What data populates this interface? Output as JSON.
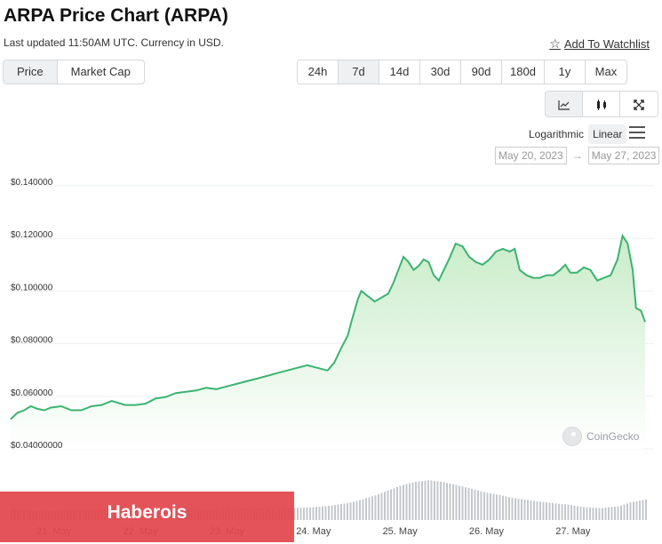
{
  "header": {
    "title": "ARPA Price Chart (ARPA)",
    "subtitle": "Last updated 11:50AM UTC. Currency in USD.",
    "watchlist_label": "Add To Watchlist"
  },
  "metric_tabs": [
    {
      "label": "Price",
      "active": true
    },
    {
      "label": "Market Cap",
      "active": false
    }
  ],
  "range_tabs": [
    {
      "label": "24h",
      "active": false
    },
    {
      "label": "7d",
      "active": true
    },
    {
      "label": "14d",
      "active": false
    },
    {
      "label": "30d",
      "active": false
    },
    {
      "label": "90d",
      "active": false
    },
    {
      "label": "180d",
      "active": false
    },
    {
      "label": "1y",
      "active": false
    },
    {
      "label": "Max",
      "active": false
    }
  ],
  "chart_types": [
    {
      "icon": "line-chart-icon",
      "active": true
    },
    {
      "icon": "candlestick-icon",
      "active": false
    },
    {
      "icon": "fullscreen-icon",
      "active": false
    }
  ],
  "scale": {
    "options": [
      "Logarithmic",
      "Linear"
    ],
    "active": "Linear"
  },
  "date_range": {
    "from": "May 20, 2023",
    "arrow": "→",
    "to": "May 27, 2023"
  },
  "credit": "CoinGecko",
  "banner": {
    "text": "Haberois",
    "color": "#e2464c"
  },
  "colors": {
    "line": "#3cb371",
    "fill_top": "#c9ecc9",
    "fill_bottom": "#ffffff",
    "volume": "#c4c8cc",
    "grid": "#eef0f2"
  },
  "chart_data": {
    "type": "area",
    "x_start": "2023-05-20 12:00",
    "x_end": "2023-05-27 20:00",
    "x_tick_labels": [
      "21. May",
      "22. May",
      "23. May",
      "24. May",
      "25. May",
      "26. May",
      "27. May"
    ],
    "x_tick_dates": [
      "2023-05-21",
      "2023-05-22",
      "2023-05-23",
      "2023-05-24",
      "2023-05-25",
      "2023-05-26",
      "2023-05-27"
    ],
    "y_tick_labels": [
      "$0.140000",
      "$0.120000",
      "$0.100000",
      "$0.080000",
      "$0.060000",
      "$0.04000000"
    ],
    "y_tick_values": [
      0.14,
      0.12,
      0.1,
      0.08,
      0.06,
      0.04
    ],
    "ylim": [
      0.04,
      0.14
    ],
    "grid": true,
    "series": [
      {
        "values": [
          [
            0.0,
            0.0513
          ],
          [
            0.2,
            0.0537
          ],
          [
            0.4,
            0.0547
          ],
          [
            0.6,
            0.0562
          ],
          [
            0.8,
            0.0552
          ],
          [
            1.0,
            0.0547
          ],
          [
            1.2,
            0.0557
          ],
          [
            1.5,
            0.0562
          ],
          [
            1.8,
            0.0547
          ],
          [
            2.1,
            0.0547
          ],
          [
            2.4,
            0.0562
          ],
          [
            2.7,
            0.0567
          ],
          [
            3.0,
            0.0582
          ],
          [
            3.4,
            0.0567
          ],
          [
            3.7,
            0.0567
          ],
          [
            4.0,
            0.0572
          ],
          [
            4.3,
            0.0592
          ],
          [
            4.6,
            0.0597
          ],
          [
            4.9,
            0.0612
          ],
          [
            5.2,
            0.0617
          ],
          [
            5.5,
            0.0622
          ],
          [
            5.8,
            0.0632
          ],
          [
            6.1,
            0.0627
          ],
          [
            6.4,
            0.0637
          ],
          [
            6.7,
            0.0647
          ],
          [
            7.0,
            0.0657
          ],
          [
            7.3,
            0.0667
          ],
          [
            7.6,
            0.0677
          ],
          [
            7.9,
            0.0688
          ],
          [
            8.2,
            0.0698
          ],
          [
            8.5,
            0.0708
          ],
          [
            8.8,
            0.0718
          ],
          [
            9.1,
            0.0708
          ],
          [
            9.4,
            0.0698
          ],
          [
            9.6,
            0.0728
          ],
          [
            9.8,
            0.0782
          ],
          [
            10.0,
            0.0831
          ],
          [
            10.1,
            0.088
          ],
          [
            10.2,
            0.0925
          ],
          [
            10.3,
            0.097
          ],
          [
            10.4,
            0.1
          ],
          [
            10.6,
            0.098
          ],
          [
            10.8,
            0.096
          ],
          [
            11.0,
            0.0975
          ],
          [
            11.2,
            0.099
          ],
          [
            11.35,
            0.103
          ],
          [
            11.5,
            0.108
          ],
          [
            11.65,
            0.113
          ],
          [
            11.8,
            0.111
          ],
          [
            11.95,
            0.108
          ],
          [
            12.1,
            0.1095
          ],
          [
            12.25,
            0.112
          ],
          [
            12.4,
            0.111
          ],
          [
            12.55,
            0.106
          ],
          [
            12.7,
            0.104
          ],
          [
            12.85,
            0.108
          ],
          [
            13.0,
            0.112
          ],
          [
            13.2,
            0.118
          ],
          [
            13.4,
            0.117
          ],
          [
            13.6,
            0.113
          ],
          [
            13.8,
            0.111
          ],
          [
            14.0,
            0.11
          ],
          [
            14.2,
            0.112
          ],
          [
            14.4,
            0.115
          ],
          [
            14.6,
            0.116
          ],
          [
            14.8,
            0.115
          ],
          [
            14.95,
            0.116
          ],
          [
            15.1,
            0.108
          ],
          [
            15.3,
            0.106
          ],
          [
            15.5,
            0.105
          ],
          [
            15.7,
            0.105
          ],
          [
            15.9,
            0.106
          ],
          [
            16.1,
            0.106
          ],
          [
            16.3,
            0.108
          ],
          [
            16.45,
            0.11
          ],
          [
            16.6,
            0.107
          ],
          [
            16.8,
            0.107
          ],
          [
            17.0,
            0.109
          ],
          [
            17.2,
            0.108
          ],
          [
            17.4,
            0.104
          ],
          [
            17.6,
            0.105
          ],
          [
            17.8,
            0.106
          ],
          [
            18.0,
            0.112
          ],
          [
            18.15,
            0.121
          ],
          [
            18.3,
            0.118
          ],
          [
            18.45,
            0.108
          ],
          [
            18.55,
            0.0935
          ],
          [
            18.7,
            0.0925
          ],
          [
            18.82,
            0.0882
          ]
        ]
      }
    ],
    "volume": [
      [
        0.0,
        0.25
      ],
      [
        1.0,
        0.22
      ],
      [
        2.0,
        0.24
      ],
      [
        3.0,
        0.26
      ],
      [
        4.0,
        0.24
      ],
      [
        5.0,
        0.27
      ],
      [
        6.0,
        0.26
      ],
      [
        7.0,
        0.28
      ],
      [
        8.0,
        0.27
      ],
      [
        9.0,
        0.3
      ],
      [
        9.5,
        0.34
      ],
      [
        10.0,
        0.4
      ],
      [
        10.4,
        0.48
      ],
      [
        10.8,
        0.58
      ],
      [
        11.2,
        0.7
      ],
      [
        11.6,
        0.82
      ],
      [
        12.0,
        0.9
      ],
      [
        12.4,
        0.93
      ],
      [
        12.8,
        0.89
      ],
      [
        13.2,
        0.82
      ],
      [
        13.6,
        0.74
      ],
      [
        14.0,
        0.66
      ],
      [
        14.5,
        0.58
      ],
      [
        15.0,
        0.5
      ],
      [
        15.5,
        0.45
      ],
      [
        16.0,
        0.4
      ],
      [
        16.5,
        0.36
      ],
      [
        17.0,
        0.3
      ],
      [
        17.5,
        0.28
      ],
      [
        18.0,
        0.32
      ],
      [
        18.4,
        0.42
      ],
      [
        18.82,
        0.48
      ]
    ]
  }
}
